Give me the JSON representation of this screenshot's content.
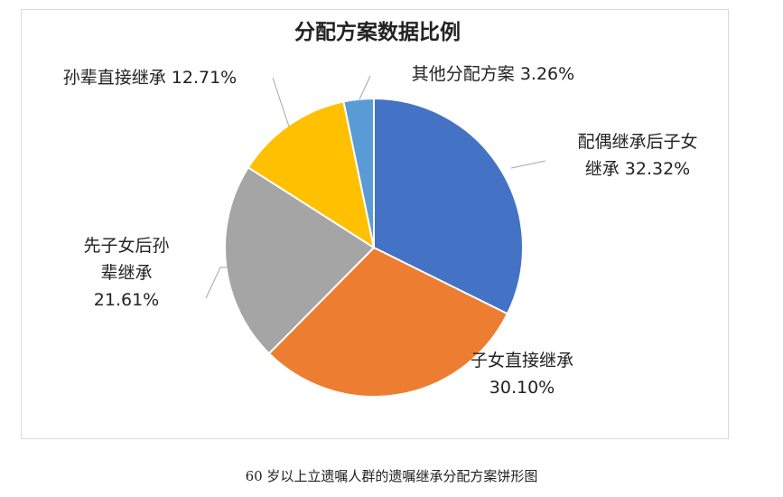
{
  "chart_data": {
    "type": "pie",
    "title": "分配方案数据比例",
    "categories": [
      "配偶继承后子女继承",
      "子女直接继承",
      "先子女后孙辈继承",
      "孙辈直接继承",
      "其他分配方案"
    ],
    "values": [
      32.32,
      30.1,
      21.61,
      12.71,
      3.26
    ],
    "unit": "%",
    "colors": [
      "#4472C4",
      "#ED7D31",
      "#A5A5A5",
      "#FFC000",
      "#5B9BD5"
    ],
    "data_labels": [
      [
        "配偶继承后子女",
        "继承 32.32%"
      ],
      [
        "子女直接继承",
        "30.10%"
      ],
      [
        "先子女后孙",
        "辈继承",
        "21.61%"
      ],
      [
        "孙辈直接继承 12.71%"
      ],
      [
        "其他分配方案 3.26%"
      ]
    ],
    "legend": "none"
  },
  "caption": "60 岁以上立遗嘱人群的遗嘱继承分配方案饼形图"
}
